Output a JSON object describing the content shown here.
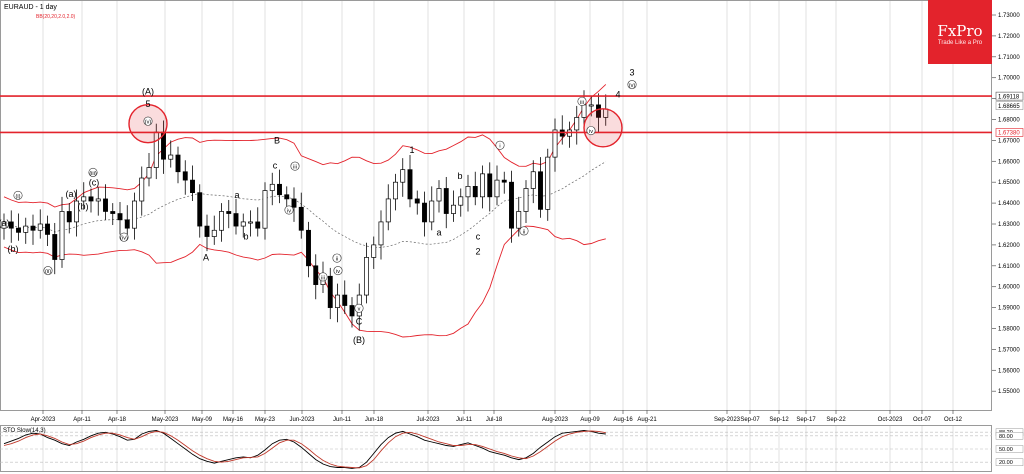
{
  "header": {
    "symbol_timeframe": "EURAUD - 1 day",
    "indicator": "BB(20,20,2.0,2.0)"
  },
  "logo": {
    "name": "FxPro",
    "tagline": "Trade Like a Pro"
  },
  "colors": {
    "resistance": "#e3232c",
    "bollinger": "#e3232c",
    "midline": "#666666",
    "bull_candle": "#ffffff",
    "bear_candle": "#000000",
    "stoch_main": "#000000",
    "stoch_signal": "#c0392b"
  },
  "chart_data": [
    {
      "type": "candlestick",
      "title": "EURAUD - 1 day",
      "xlabel": "",
      "ylabel": "",
      "ylim": [
        1.545,
        1.736
      ],
      "grid": false,
      "y_ticks": [
        "1.55000",
        "1.56000",
        "1.57000",
        "1.58000",
        "1.59000",
        "1.60000",
        "1.61000",
        "1.62000",
        "1.63000",
        "1.64000",
        "1.65000",
        "1.66000",
        "1.67000",
        "1.68000",
        "1.69000",
        "1.70000",
        "1.71000",
        "1.72000",
        "1.73000"
      ],
      "x_ticks": [
        "Apr-2023",
        "Apr-11",
        "Apr-18",
        "May-2023",
        "May-09",
        "May-16",
        "May-23",
        "Jun-2023",
        "Jun-11",
        "Jun-18",
        "Jul-2023",
        "Jul-11",
        "Jul-18",
        "Aug-2023",
        "Aug-09",
        "Aug-16",
        "Aug-21",
        "Sep-2023",
        "Sep-07",
        "Sep-12",
        "Sep-17",
        "Sep-22",
        "Oct-2023",
        "Oct-07",
        "Oct-12"
      ],
      "price_tags": [
        "1.69118",
        "1.68665",
        "1.67380"
      ],
      "resistance_levels": [
        1.6912,
        1.6738
      ],
      "circled_zones": [
        {
          "label": "(A) 5 (v)",
          "price": 1.678
        },
        {
          "label": "(iv) / current",
          "price": 1.676
        }
      ],
      "closes": [
        1.631,
        1.628,
        1.626,
        1.629,
        1.627,
        1.63,
        1.625,
        1.613,
        1.636,
        1.631,
        1.641,
        1.643,
        1.641,
        1.642,
        1.636,
        1.635,
        1.632,
        1.628,
        1.641,
        1.652,
        1.657,
        1.674,
        1.661,
        1.663,
        1.655,
        1.651,
        1.645,
        1.629,
        1.624,
        1.627,
        1.636,
        1.635,
        1.629,
        1.631,
        1.631,
        1.628,
        1.646,
        1.649,
        1.644,
        1.642,
        1.638,
        1.627,
        1.61,
        1.601,
        1.605,
        1.59,
        1.596,
        1.591,
        1.586,
        1.596,
        1.614,
        1.62,
        1.631,
        1.642,
        1.65,
        1.656,
        1.642,
        1.64,
        1.631,
        1.641,
        1.647,
        1.635,
        1.639,
        1.643,
        1.648,
        1.643,
        1.654,
        1.643,
        1.651,
        1.65,
        1.628,
        1.636,
        1.647,
        1.655,
        1.637,
        1.662,
        1.675,
        1.672,
        1.675,
        1.681,
        1.687,
        1.687,
        1.681,
        1.685
      ],
      "annotations": [
        "(i)",
        "(a)",
        "(b)",
        "(c)",
        "(ii)",
        "(iii)",
        "(iv)",
        "(v)",
        "(A)",
        "5",
        "A",
        "B",
        "(B)",
        "C",
        "1",
        "2",
        "3",
        "4",
        "a",
        "b",
        "c",
        "i",
        "ii",
        "iii",
        "iv",
        "v"
      ],
      "waves": [
        {
          "text": "(a)",
          "x": 4,
          "price": 1.629
        },
        {
          "text": "(b)",
          "x": 13,
          "price": 1.6165
        },
        {
          "text": "(i)",
          "x": 18,
          "price": 1.6425
        },
        {
          "text": "(ii)",
          "x": 48,
          "price": 1.6065
        },
        {
          "text": "(a)",
          "x": 71,
          "price": 1.643
        },
        {
          "text": "(b)",
          "x": 83,
          "price": 1.637
        },
        {
          "text": "(iii)",
          "x": 93,
          "price": 1.6535
        },
        {
          "text": "(c)",
          "x": 94,
          "price": 1.6485
        },
        {
          "text": "(iv)",
          "x": 124,
          "price": 1.6225
        },
        {
          "text": "(A)",
          "x": 148,
          "price": 1.692
        },
        {
          "text": "5",
          "x": 148,
          "price": 1.686
        },
        {
          "text": "(v)",
          "x": 148,
          "price": 1.678
        },
        {
          "text": "A",
          "x": 206,
          "price": 1.6125
        },
        {
          "text": "a",
          "x": 237,
          "price": 1.6425
        },
        {
          "text": "b",
          "x": 246,
          "price": 1.6225
        },
        {
          "text": "B",
          "x": 277,
          "price": 1.6685
        },
        {
          "text": "c",
          "x": 275,
          "price": 1.6565
        },
        {
          "text": "iii",
          "x": 295,
          "price": 1.6565
        },
        {
          "text": "iv",
          "x": 289,
          "price": 1.6355
        },
        {
          "text": "ii",
          "x": 337,
          "price": 1.6125
        },
        {
          "text": "iii",
          "x": 323,
          "price": 1.6035
        },
        {
          "text": "iv",
          "x": 338,
          "price": 1.6065
        },
        {
          "text": "v",
          "x": 359,
          "price": 1.5885
        },
        {
          "text": "C",
          "x": 359,
          "price": 1.582
        },
        {
          "text": "(B)",
          "x": 359,
          "price": 1.573
        },
        {
          "text": "1",
          "x": 412,
          "price": 1.664
        },
        {
          "text": "a",
          "x": 439,
          "price": 1.6245
        },
        {
          "text": "b",
          "x": 460,
          "price": 1.6515
        },
        {
          "text": "c",
          "x": 478,
          "price": 1.6225
        },
        {
          "text": "2",
          "x": 478,
          "price": 1.6155
        },
        {
          "text": "i",
          "x": 500,
          "price": 1.6665
        },
        {
          "text": "ii",
          "x": 524,
          "price": 1.6255
        },
        {
          "text": "iii",
          "x": 582,
          "price": 1.6875
        },
        {
          "text": "iv",
          "x": 591,
          "price": 1.6735
        },
        {
          "text": "3",
          "x": 632,
          "price": 1.701
        },
        {
          "text": "4",
          "x": 618,
          "price": 1.6905
        },
        {
          "text": "(v)",
          "x": 632,
          "price": 1.6955
        }
      ]
    },
    {
      "type": "line",
      "title": "STO Slow(14,3)",
      "ylim": [
        0,
        100
      ],
      "y_ticks": [
        "88.20",
        "80.00",
        "50.00",
        "20.00"
      ],
      "series": [
        {
          "values": [
            62,
            68,
            74,
            82,
            86,
            84,
            76,
            70,
            62,
            58,
            66,
            72,
            80,
            86,
            88,
            84,
            78,
            70,
            72,
            84,
            90,
            92,
            86,
            74,
            62,
            50,
            38,
            28,
            22,
            18,
            22,
            26,
            30,
            32,
            30,
            36,
            48,
            62,
            70,
            72,
            66,
            54,
            40,
            26,
            16,
            10,
            8,
            8,
            6,
            8,
            20,
            40,
            60,
            76,
            86,
            90,
            84,
            78,
            70,
            66,
            62,
            58,
            56,
            60,
            64,
            58,
            52,
            44,
            40,
            36,
            30,
            26,
            30,
            40,
            54,
            66,
            78,
            86,
            88,
            90,
            92,
            90,
            86,
            84
          ]
        },
        {
          "values": [
            58,
            62,
            68,
            76,
            82,
            84,
            80,
            74,
            66,
            60,
            62,
            68,
            76,
            82,
            86,
            86,
            82,
            76,
            72,
            78,
            86,
            90,
            88,
            80,
            70,
            58,
            46,
            36,
            28,
            22,
            20,
            22,
            26,
            30,
            31,
            32,
            40,
            52,
            64,
            70,
            70,
            62,
            50,
            36,
            24,
            16,
            11,
            9,
            8,
            7,
            12,
            26,
            46,
            64,
            78,
            86,
            88,
            84,
            78,
            72,
            66,
            62,
            58,
            58,
            60,
            60,
            56,
            50,
            44,
            40,
            34,
            30,
            28,
            34,
            44,
            56,
            68,
            78,
            84,
            88,
            90,
            91,
            90,
            87
          ]
        }
      ]
    }
  ]
}
